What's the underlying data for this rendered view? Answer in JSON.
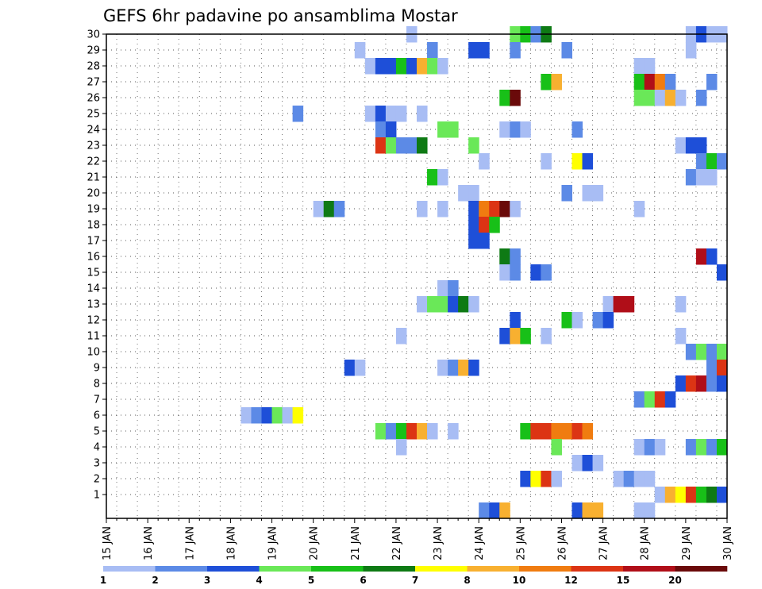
{
  "chart_data": {
    "type": "heatmap",
    "title": "GEFS 6hr padavine po ansamblima Mostar",
    "x_ticks": [
      "15 JAN",
      "16 JAN",
      "17 JAN",
      "18 JAN",
      "19 JAN",
      "20 JAN",
      "21 JAN",
      "22 JAN",
      "23 JAN",
      "24 JAN",
      "25 JAN",
      "26 JAN",
      "27 JAN",
      "28 JAN",
      "29 JAN",
      "30 JAN"
    ],
    "y_ticks": [
      "1",
      "2",
      "3",
      "4",
      "5",
      "6",
      "7",
      "8",
      "9",
      "10",
      "11",
      "12",
      "13",
      "14",
      "15",
      "16",
      "17",
      "18",
      "19",
      "20",
      "21",
      "22",
      "23",
      "24",
      "25",
      "26",
      "27",
      "28",
      "29",
      "30"
    ],
    "x_range": [
      "15 JAN",
      "30 JAN"
    ],
    "y_range": [
      0,
      30
    ],
    "grid": true,
    "colorbar": {
      "labels": [
        "1",
        "2",
        "3",
        "4",
        "5",
        "6",
        "7",
        "8",
        "10",
        "12",
        "15",
        "20"
      ],
      "colors": [
        "#a8bdf4",
        "#5c8ae6",
        "#1e4fd8",
        "#6ae858",
        "#18c018",
        "#0e7a14",
        "#ffff00",
        "#f8b030",
        "#f07c10",
        "#dc3414",
        "#b00e18",
        "#6a0a0a"
      ]
    },
    "cells": [
      {
        "member": 30,
        "day": 22.25,
        "bin": 0
      },
      {
        "member": 30,
        "day": 24.75,
        "bin": 3
      },
      {
        "member": 30,
        "day": 25,
        "bin": 4
      },
      {
        "member": 30,
        "day": 25.25,
        "bin": 1
      },
      {
        "member": 30,
        "day": 25.5,
        "bin": 5
      },
      {
        "member": 30,
        "day": 29,
        "bin": 0
      },
      {
        "member": 30,
        "day": 29.25,
        "bin": 2
      },
      {
        "member": 30,
        "day": 29.5,
        "bin": 0
      },
      {
        "member": 30,
        "day": 29.75,
        "bin": 0
      },
      {
        "member": 29,
        "day": 21,
        "bin": 0
      },
      {
        "member": 29,
        "day": 22.75,
        "bin": 1
      },
      {
        "member": 29,
        "day": 23.75,
        "bin": 2
      },
      {
        "member": 29,
        "day": 24,
        "bin": 2
      },
      {
        "member": 29,
        "day": 24.75,
        "bin": 1
      },
      {
        "member": 29,
        "day": 26,
        "bin": 1
      },
      {
        "member": 29,
        "day": 29,
        "bin": 0
      },
      {
        "member": 28,
        "day": 21.25,
        "bin": 0
      },
      {
        "member": 28,
        "day": 21.5,
        "bin": 2
      },
      {
        "member": 28,
        "day": 21.75,
        "bin": 2
      },
      {
        "member": 28,
        "day": 22,
        "bin": 4
      },
      {
        "member": 28,
        "day": 22.25,
        "bin": 2
      },
      {
        "member": 28,
        "day": 22.5,
        "bin": 7
      },
      {
        "member": 28,
        "day": 22.75,
        "bin": 3
      },
      {
        "member": 28,
        "day": 23,
        "bin": 0
      },
      {
        "member": 28,
        "day": 27.75,
        "bin": 0
      },
      {
        "member": 28,
        "day": 28,
        "bin": 0
      },
      {
        "member": 27,
        "day": 25.5,
        "bin": 4
      },
      {
        "member": 27,
        "day": 25.75,
        "bin": 7
      },
      {
        "member": 27,
        "day": 27.75,
        "bin": 4
      },
      {
        "member": 27,
        "day": 28,
        "bin": 10
      },
      {
        "member": 27,
        "day": 28.25,
        "bin": 8
      },
      {
        "member": 27,
        "day": 28.5,
        "bin": 1
      },
      {
        "member": 27,
        "day": 29.5,
        "bin": 1
      },
      {
        "member": 26,
        "day": 24.5,
        "bin": 4
      },
      {
        "member": 26,
        "day": 24.75,
        "bin": 11
      },
      {
        "member": 26,
        "day": 27.75,
        "bin": 3
      },
      {
        "member": 26,
        "day": 28,
        "bin": 3
      },
      {
        "member": 26,
        "day": 28.25,
        "bin": 0
      },
      {
        "member": 26,
        "day": 28.5,
        "bin": 7
      },
      {
        "member": 26,
        "day": 28.75,
        "bin": 0
      },
      {
        "member": 26,
        "day": 29.25,
        "bin": 1
      },
      {
        "member": 25,
        "day": 19.5,
        "bin": 1
      },
      {
        "member": 25,
        "day": 21.25,
        "bin": 0
      },
      {
        "member": 25,
        "day": 21.5,
        "bin": 2
      },
      {
        "member": 25,
        "day": 21.75,
        "bin": 0
      },
      {
        "member": 25,
        "day": 22,
        "bin": 0
      },
      {
        "member": 25,
        "day": 22.5,
        "bin": 0
      },
      {
        "member": 24,
        "day": 21.5,
        "bin": 1
      },
      {
        "member": 24,
        "day": 21.75,
        "bin": 2
      },
      {
        "member": 24,
        "day": 23,
        "bin": 3
      },
      {
        "member": 24,
        "day": 23.25,
        "bin": 3
      },
      {
        "member": 24,
        "day": 24.5,
        "bin": 0
      },
      {
        "member": 24,
        "day": 24.75,
        "bin": 1
      },
      {
        "member": 24,
        "day": 25,
        "bin": 0
      },
      {
        "member": 24,
        "day": 26.25,
        "bin": 1
      },
      {
        "member": 23,
        "day": 21.5,
        "bin": 9
      },
      {
        "member": 23,
        "day": 21.75,
        "bin": 3
      },
      {
        "member": 23,
        "day": 22,
        "bin": 1
      },
      {
        "member": 23,
        "day": 22.25,
        "bin": 1
      },
      {
        "member": 23,
        "day": 22.5,
        "bin": 5
      },
      {
        "member": 23,
        "day": 23.75,
        "bin": 3
      },
      {
        "member": 23,
        "day": 28.75,
        "bin": 0
      },
      {
        "member": 23,
        "day": 29,
        "bin": 2
      },
      {
        "member": 23,
        "day": 29.25,
        "bin": 2
      },
      {
        "member": 22,
        "day": 24,
        "bin": 0
      },
      {
        "member": 22,
        "day": 25.5,
        "bin": 0
      },
      {
        "member": 22,
        "day": 26.25,
        "bin": 6
      },
      {
        "member": 22,
        "day": 26.5,
        "bin": 2
      },
      {
        "member": 22,
        "day": 29.25,
        "bin": 1
      },
      {
        "member": 22,
        "day": 29.5,
        "bin": 4
      },
      {
        "member": 22,
        "day": 29.75,
        "bin": 1
      },
      {
        "member": 21,
        "day": 22.75,
        "bin": 4
      },
      {
        "member": 21,
        "day": 23,
        "bin": 0
      },
      {
        "member": 21,
        "day": 29,
        "bin": 1
      },
      {
        "member": 21,
        "day": 29.25,
        "bin": 0
      },
      {
        "member": 21,
        "day": 29.5,
        "bin": 0
      },
      {
        "member": 20,
        "day": 23.5,
        "bin": 0
      },
      {
        "member": 20,
        "day": 23.75,
        "bin": 0
      },
      {
        "member": 20,
        "day": 26,
        "bin": 1
      },
      {
        "member": 20,
        "day": 26.5,
        "bin": 0
      },
      {
        "member": 20,
        "day": 26.75,
        "bin": 0
      },
      {
        "member": 19,
        "day": 20,
        "bin": 0
      },
      {
        "member": 19,
        "day": 20.25,
        "bin": 5
      },
      {
        "member": 19,
        "day": 20.5,
        "bin": 1
      },
      {
        "member": 19,
        "day": 22.5,
        "bin": 0
      },
      {
        "member": 19,
        "day": 23,
        "bin": 0
      },
      {
        "member": 19,
        "day": 23.75,
        "bin": 2
      },
      {
        "member": 19,
        "day": 24,
        "bin": 8
      },
      {
        "member": 19,
        "day": 24.25,
        "bin": 9
      },
      {
        "member": 19,
        "day": 24.5,
        "bin": 11
      },
      {
        "member": 19,
        "day": 24.75,
        "bin": 0
      },
      {
        "member": 19,
        "day": 27.75,
        "bin": 0
      },
      {
        "member": 18,
        "day": 23.75,
        "bin": 2
      },
      {
        "member": 18,
        "day": 24,
        "bin": 9
      },
      {
        "member": 18,
        "day": 24.25,
        "bin": 4
      },
      {
        "member": 17,
        "day": 23.75,
        "bin": 2
      },
      {
        "member": 17,
        "day": 24,
        "bin": 2
      },
      {
        "member": 16,
        "day": 24.5,
        "bin": 5
      },
      {
        "member": 16,
        "day": 24.75,
        "bin": 1
      },
      {
        "member": 16,
        "day": 29.25,
        "bin": 10
      },
      {
        "member": 16,
        "day": 29.5,
        "bin": 2
      },
      {
        "member": 15,
        "day": 24.5,
        "bin": 0
      },
      {
        "member": 15,
        "day": 24.75,
        "bin": 1
      },
      {
        "member": 15,
        "day": 25.25,
        "bin": 2
      },
      {
        "member": 15,
        "day": 25.5,
        "bin": 1
      },
      {
        "member": 15,
        "day": 29.75,
        "bin": 2
      },
      {
        "member": 14,
        "day": 23,
        "bin": 0
      },
      {
        "member": 14,
        "day": 23.25,
        "bin": 1
      },
      {
        "member": 13,
        "day": 22.5,
        "bin": 0
      },
      {
        "member": 13,
        "day": 22.75,
        "bin": 3
      },
      {
        "member": 13,
        "day": 23,
        "bin": 3
      },
      {
        "member": 13,
        "day": 23.25,
        "bin": 2
      },
      {
        "member": 13,
        "day": 23.5,
        "bin": 5
      },
      {
        "member": 13,
        "day": 23.75,
        "bin": 0
      },
      {
        "member": 13,
        "day": 27,
        "bin": 0
      },
      {
        "member": 13,
        "day": 27.25,
        "bin": 10
      },
      {
        "member": 13,
        "day": 27.5,
        "bin": 10
      },
      {
        "member": 13,
        "day": 28.75,
        "bin": 0
      },
      {
        "member": 12,
        "day": 24.75,
        "bin": 2
      },
      {
        "member": 12,
        "day": 26,
        "bin": 4
      },
      {
        "member": 12,
        "day": 26.25,
        "bin": 0
      },
      {
        "member": 12,
        "day": 26.75,
        "bin": 1
      },
      {
        "member": 12,
        "day": 27,
        "bin": 2
      },
      {
        "member": 11,
        "day": 22,
        "bin": 0
      },
      {
        "member": 11,
        "day": 24.5,
        "bin": 2
      },
      {
        "member": 11,
        "day": 24.75,
        "bin": 7
      },
      {
        "member": 11,
        "day": 25,
        "bin": 4
      },
      {
        "member": 11,
        "day": 25.5,
        "bin": 0
      },
      {
        "member": 11,
        "day": 28.75,
        "bin": 0
      },
      {
        "member": 10,
        "day": 29,
        "bin": 1
      },
      {
        "member": 10,
        "day": 29.25,
        "bin": 3
      },
      {
        "member": 10,
        "day": 29.5,
        "bin": 1
      },
      {
        "member": 10,
        "day": 29.75,
        "bin": 3
      },
      {
        "member": 9,
        "day": 20.75,
        "bin": 2
      },
      {
        "member": 9,
        "day": 21,
        "bin": 0
      },
      {
        "member": 9,
        "day": 23,
        "bin": 0
      },
      {
        "member": 9,
        "day": 23.25,
        "bin": 1
      },
      {
        "member": 9,
        "day": 23.5,
        "bin": 7
      },
      {
        "member": 9,
        "day": 23.75,
        "bin": 2
      },
      {
        "member": 9,
        "day": 29.5,
        "bin": 1
      },
      {
        "member": 9,
        "day": 29.75,
        "bin": 9
      },
      {
        "member": 8,
        "day": 28.75,
        "bin": 2
      },
      {
        "member": 8,
        "day": 29,
        "bin": 9
      },
      {
        "member": 8,
        "day": 29.25,
        "bin": 10
      },
      {
        "member": 8,
        "day": 29.5,
        "bin": 1
      },
      {
        "member": 8,
        "day": 29.75,
        "bin": 2
      },
      {
        "member": 7,
        "day": 27.75,
        "bin": 1
      },
      {
        "member": 7,
        "day": 28,
        "bin": 3
      },
      {
        "member": 7,
        "day": 28.25,
        "bin": 9
      },
      {
        "member": 7,
        "day": 28.5,
        "bin": 2
      },
      {
        "member": 6,
        "day": 18.25,
        "bin": 0
      },
      {
        "member": 6,
        "day": 18.5,
        "bin": 1
      },
      {
        "member": 6,
        "day": 18.75,
        "bin": 2
      },
      {
        "member": 6,
        "day": 19,
        "bin": 3
      },
      {
        "member": 6,
        "day": 19.25,
        "bin": 0
      },
      {
        "member": 6,
        "day": 19.5,
        "bin": 6
      },
      {
        "member": 5,
        "day": 21.5,
        "bin": 3
      },
      {
        "member": 5,
        "day": 21.75,
        "bin": 1
      },
      {
        "member": 5,
        "day": 22,
        "bin": 4
      },
      {
        "member": 5,
        "day": 22.25,
        "bin": 9
      },
      {
        "member": 5,
        "day": 22.5,
        "bin": 7
      },
      {
        "member": 5,
        "day": 22.75,
        "bin": 0
      },
      {
        "member": 5,
        "day": 23.25,
        "bin": 0
      },
      {
        "member": 5,
        "day": 25,
        "bin": 4
      },
      {
        "member": 5,
        "day": 25.25,
        "bin": 9
      },
      {
        "member": 5,
        "day": 25.5,
        "bin": 9
      },
      {
        "member": 5,
        "day": 25.75,
        "bin": 8
      },
      {
        "member": 5,
        "day": 26,
        "bin": 8
      },
      {
        "member": 5,
        "day": 26.25,
        "bin": 9
      },
      {
        "member": 5,
        "day": 26.5,
        "bin": 8
      },
      {
        "member": 4,
        "day": 22,
        "bin": 0
      },
      {
        "member": 4,
        "day": 25.75,
        "bin": 3
      },
      {
        "member": 4,
        "day": 27.75,
        "bin": 0
      },
      {
        "member": 4,
        "day": 28,
        "bin": 1
      },
      {
        "member": 4,
        "day": 28.25,
        "bin": 0
      },
      {
        "member": 4,
        "day": 29,
        "bin": 1
      },
      {
        "member": 4,
        "day": 29.25,
        "bin": 3
      },
      {
        "member": 4,
        "day": 29.5,
        "bin": 1
      },
      {
        "member": 4,
        "day": 29.75,
        "bin": 4
      },
      {
        "member": 3,
        "day": 26.25,
        "bin": 0
      },
      {
        "member": 3,
        "day": 26.5,
        "bin": 2
      },
      {
        "member": 3,
        "day": 26.75,
        "bin": 0
      },
      {
        "member": 2,
        "day": 25,
        "bin": 2
      },
      {
        "member": 2,
        "day": 25.25,
        "bin": 6
      },
      {
        "member": 2,
        "day": 25.5,
        "bin": 9
      },
      {
        "member": 2,
        "day": 25.75,
        "bin": 0
      },
      {
        "member": 2,
        "day": 27.25,
        "bin": 0
      },
      {
        "member": 2,
        "day": 27.5,
        "bin": 1
      },
      {
        "member": 2,
        "day": 27.75,
        "bin": 0
      },
      {
        "member": 2,
        "day": 28,
        "bin": 0
      },
      {
        "member": 1,
        "day": 28.25,
        "bin": 0
      },
      {
        "member": 1,
        "day": 28.5,
        "bin": 7
      },
      {
        "member": 1,
        "day": 28.75,
        "bin": 6
      },
      {
        "member": 1,
        "day": 29,
        "bin": 9
      },
      {
        "member": 1,
        "day": 29.25,
        "bin": 4
      },
      {
        "member": 1,
        "day": 29.5,
        "bin": 5
      },
      {
        "member": 1,
        "day": 29.75,
        "bin": 2
      },
      {
        "member": 0,
        "day": 24,
        "bin": 1
      },
      {
        "member": 0,
        "day": 24.25,
        "bin": 2
      },
      {
        "member": 0,
        "day": 24.5,
        "bin": 7
      },
      {
        "member": 0,
        "day": 26.25,
        "bin": 2
      },
      {
        "member": 0,
        "day": 26.5,
        "bin": 7
      },
      {
        "member": 0,
        "day": 26.75,
        "bin": 7
      },
      {
        "member": 0,
        "day": 27.75,
        "bin": 0
      },
      {
        "member": 0,
        "day": 28,
        "bin": 0
      }
    ]
  }
}
